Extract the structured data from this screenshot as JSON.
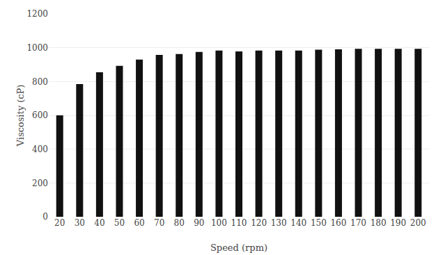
{
  "chart_data": {
    "type": "bar",
    "xlabel": "Speed (rpm)",
    "ylabel": "Viscosity (cP)",
    "categories": [
      "20",
      "30",
      "40",
      "50",
      "60",
      "70",
      "80",
      "90",
      "100",
      "110",
      "120",
      "130",
      "140",
      "150",
      "160",
      "170",
      "180",
      "190",
      "200"
    ],
    "values": [
      600,
      785,
      855,
      893,
      930,
      958,
      963,
      975,
      983,
      978,
      983,
      983,
      983,
      988,
      990,
      993,
      993,
      993,
      993
    ],
    "color": "#111111",
    "ylim": [
      0,
      1200
    ],
    "yticks": [
      0,
      200,
      400,
      600,
      800,
      1000,
      1200
    ],
    "grid": true
  }
}
